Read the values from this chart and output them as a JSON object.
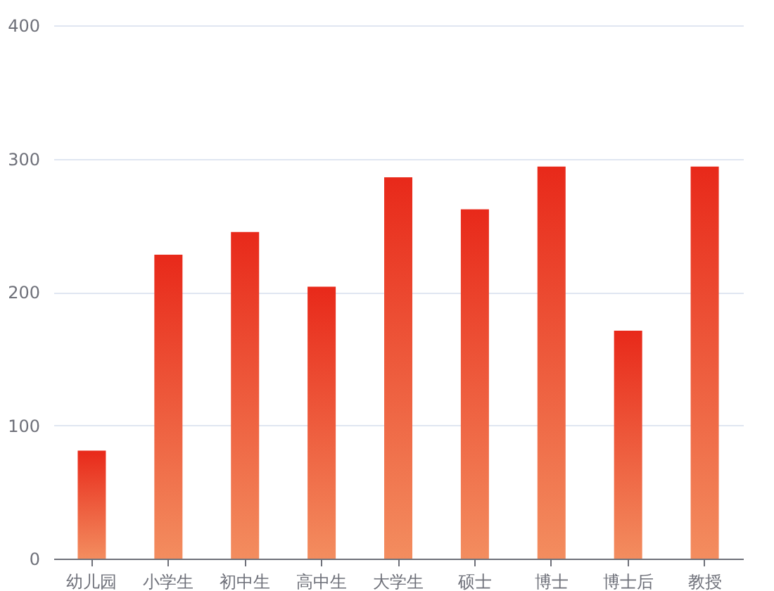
{
  "chart_data": {
    "type": "bar",
    "categories": [
      "幼儿园",
      "小学生",
      "初中生",
      "高中生",
      "大学生",
      "硕士",
      "博士",
      "博士后",
      "教授"
    ],
    "values": [
      81,
      228,
      245,
      204,
      286,
      262,
      294,
      171,
      294
    ],
    "color": "#e8291a",
    "ylim": [
      0,
      400
    ],
    "yticks": [
      0,
      100,
      200,
      300,
      400
    ],
    "grid": "y"
  }
}
